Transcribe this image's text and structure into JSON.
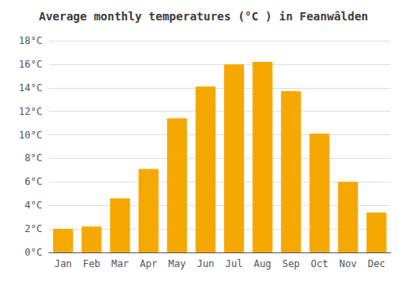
{
  "chart_data": {
    "type": "bar",
    "title": "Average monthly temperatures (°C ) in Feanwâlden",
    "categories": [
      "Jan",
      "Feb",
      "Mar",
      "Apr",
      "May",
      "Jun",
      "Jul",
      "Aug",
      "Sep",
      "Oct",
      "Nov",
      "Dec"
    ],
    "values": [
      2.0,
      2.2,
      4.6,
      7.1,
      11.4,
      14.1,
      16.0,
      16.2,
      13.7,
      10.1,
      6.0,
      3.4
    ],
    "color": "#F5A800",
    "ylim": [
      0,
      18
    ],
    "yticks": [
      {
        "value": 0,
        "label": "0°C"
      },
      {
        "value": 2,
        "label": "2°C"
      },
      {
        "value": 4,
        "label": "4°C"
      },
      {
        "value": 6,
        "label": "6°C"
      },
      {
        "value": 8,
        "label": "8°C"
      },
      {
        "value": 10,
        "label": "10°C"
      },
      {
        "value": 12,
        "label": "12°C"
      },
      {
        "value": 14,
        "label": "14°C"
      },
      {
        "value": 16,
        "label": "16°C"
      },
      {
        "value": 18,
        "label": "18°C"
      }
    ],
    "grid": true
  }
}
